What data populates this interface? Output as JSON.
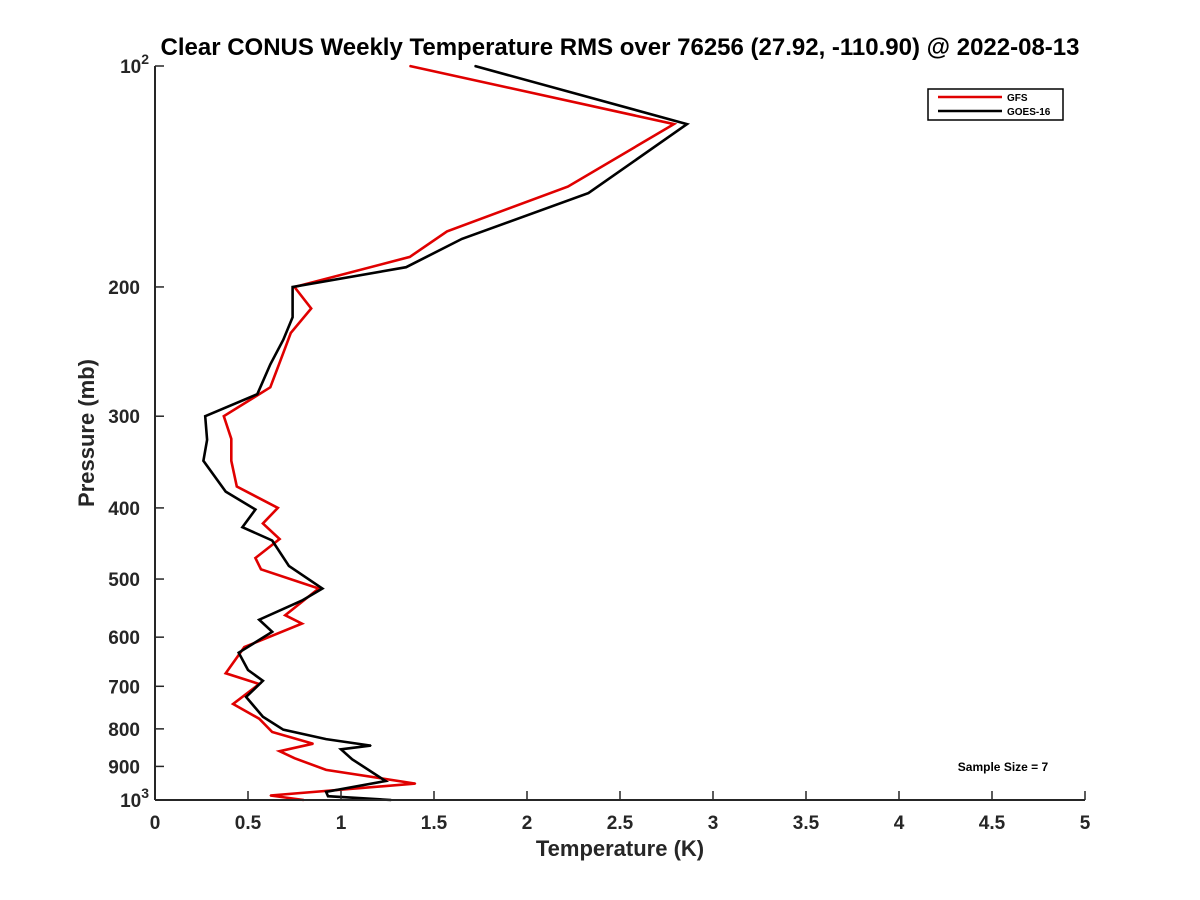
{
  "chart_data": {
    "type": "line",
    "title": "Clear CONUS Weekly Temperature RMS over 76256 (27.92, -110.90) @ 2022-08-13",
    "xlabel": "Temperature (K)",
    "ylabel": "Pressure (mb)",
    "xlim": [
      0,
      5
    ],
    "ylim": [
      100,
      1000
    ],
    "y_scale": "log",
    "y_reversed": true,
    "x_ticks": [
      {
        "value": 0,
        "label": "0"
      },
      {
        "value": 0.5,
        "label": "0.5"
      },
      {
        "value": 1,
        "label": "1"
      },
      {
        "value": 1.5,
        "label": "1.5"
      },
      {
        "value": 2,
        "label": "2"
      },
      {
        "value": 2.5,
        "label": "2.5"
      },
      {
        "value": 3,
        "label": "3"
      },
      {
        "value": 3.5,
        "label": "3.5"
      },
      {
        "value": 4,
        "label": "4"
      },
      {
        "value": 4.5,
        "label": "4.5"
      },
      {
        "value": 5,
        "label": "5"
      }
    ],
    "y_ticks": [
      {
        "value": 200,
        "label": "200"
      },
      {
        "value": 300,
        "label": "300"
      },
      {
        "value": 400,
        "label": "400"
      },
      {
        "value": 500,
        "label": "500"
      },
      {
        "value": 600,
        "label": "600"
      },
      {
        "value": 700,
        "label": "700"
      },
      {
        "value": 800,
        "label": "800"
      },
      {
        "value": 900,
        "label": "900"
      }
    ],
    "y_tick_power_labels": [
      {
        "value": 100,
        "base": "10",
        "exp": "2"
      },
      {
        "value": 1000,
        "base": "10",
        "exp": "3"
      }
    ],
    "grid": false,
    "legend_position": "top-right",
    "annotation": "Sample Size = 7",
    "series": [
      {
        "name": "GFS",
        "color": "#e00000",
        "points": [
          [
            1.37,
            100
          ],
          [
            2.79,
            120
          ],
          [
            2.22,
            146
          ],
          [
            1.57,
            168
          ],
          [
            1.37,
            182
          ],
          [
            0.75,
            200
          ],
          [
            0.84,
            214
          ],
          [
            0.73,
            231
          ],
          [
            0.69,
            246
          ],
          [
            0.62,
            274
          ],
          [
            0.37,
            300
          ],
          [
            0.41,
            322
          ],
          [
            0.41,
            345
          ],
          [
            0.44,
            374
          ],
          [
            0.66,
            400
          ],
          [
            0.58,
            420
          ],
          [
            0.67,
            441
          ],
          [
            0.54,
            468
          ],
          [
            0.57,
            485
          ],
          [
            0.88,
            515
          ],
          [
            0.7,
            560
          ],
          [
            0.79,
            575
          ],
          [
            0.48,
            619
          ],
          [
            0.38,
            672
          ],
          [
            0.56,
            695
          ],
          [
            0.42,
            740
          ],
          [
            0.56,
            775
          ],
          [
            0.63,
            808
          ],
          [
            0.85,
            838
          ],
          [
            0.67,
            858
          ],
          [
            0.75,
            877
          ],
          [
            0.92,
            910
          ],
          [
            1.4,
            950
          ],
          [
            0.62,
            986
          ],
          [
            0.8,
            1000
          ]
        ]
      },
      {
        "name": "GOES-16",
        "color": "#000000",
        "points": [
          [
            1.72,
            100
          ],
          [
            2.86,
            120
          ],
          [
            2.33,
            149
          ],
          [
            1.65,
            172
          ],
          [
            1.35,
            188
          ],
          [
            0.74,
            200
          ],
          [
            0.74,
            220
          ],
          [
            0.69,
            236
          ],
          [
            0.62,
            255
          ],
          [
            0.55,
            280
          ],
          [
            0.27,
            300
          ],
          [
            0.28,
            323
          ],
          [
            0.26,
            345
          ],
          [
            0.38,
            380
          ],
          [
            0.54,
            402
          ],
          [
            0.47,
            425
          ],
          [
            0.63,
            443
          ],
          [
            0.72,
            480
          ],
          [
            0.9,
            515
          ],
          [
            0.79,
            535
          ],
          [
            0.56,
            568
          ],
          [
            0.63,
            590
          ],
          [
            0.45,
            630
          ],
          [
            0.5,
            665
          ],
          [
            0.58,
            688
          ],
          [
            0.49,
            724
          ],
          [
            0.58,
            770
          ],
          [
            0.69,
            802
          ],
          [
            0.92,
            826
          ],
          [
            1.16,
            843
          ],
          [
            1.0,
            853
          ],
          [
            1.06,
            880
          ],
          [
            1.24,
            942
          ],
          [
            0.92,
            975
          ],
          [
            0.93,
            988
          ],
          [
            1.27,
            1000
          ]
        ]
      }
    ]
  }
}
